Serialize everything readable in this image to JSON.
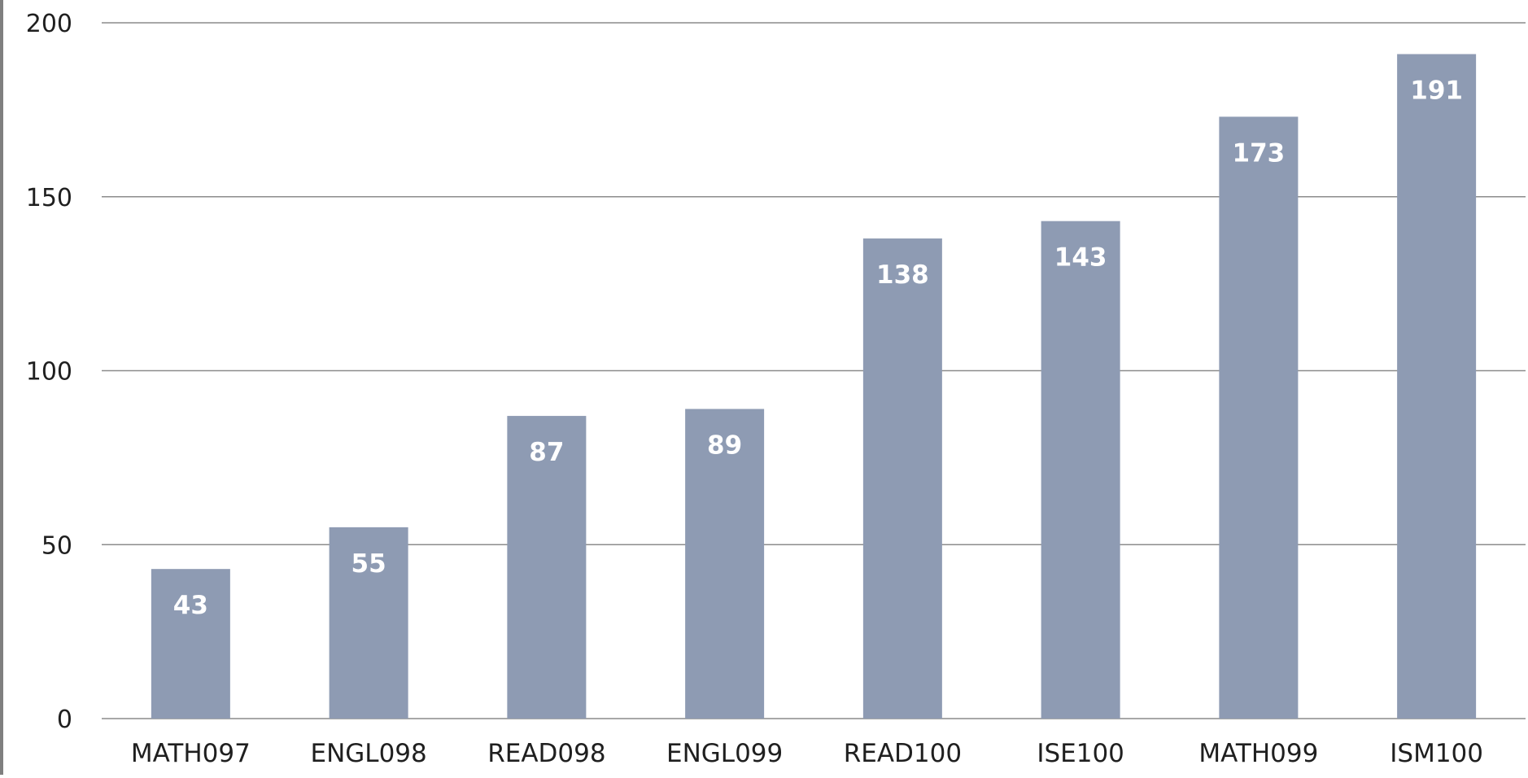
{
  "chart_data": {
    "type": "bar",
    "title": "",
    "xlabel": "",
    "ylabel": "",
    "categories": [
      "MATH097",
      "ENGL098",
      "READ098",
      "ENGL099",
      "READ100",
      "ISE100",
      "MATH099",
      "ISM100"
    ],
    "values": [
      43,
      55,
      87,
      89,
      138,
      143,
      173,
      191
    ],
    "data_labels": [
      "43",
      "55",
      "87",
      "89",
      "138",
      "143",
      "173",
      "191"
    ],
    "ylim": [
      0,
      200
    ],
    "yticks": [
      0,
      50,
      100,
      150,
      200
    ],
    "ytick_labels": [
      "0",
      "50",
      "100",
      "150",
      "200"
    ],
    "grid": true,
    "legend": "none",
    "colors": {
      "bar": "#8e9bb3",
      "gridline": "#8c8c8c",
      "axis_text": "#1f1f1f",
      "data_label_text": "#ffffff",
      "left_border": "#7f7f7f"
    }
  }
}
